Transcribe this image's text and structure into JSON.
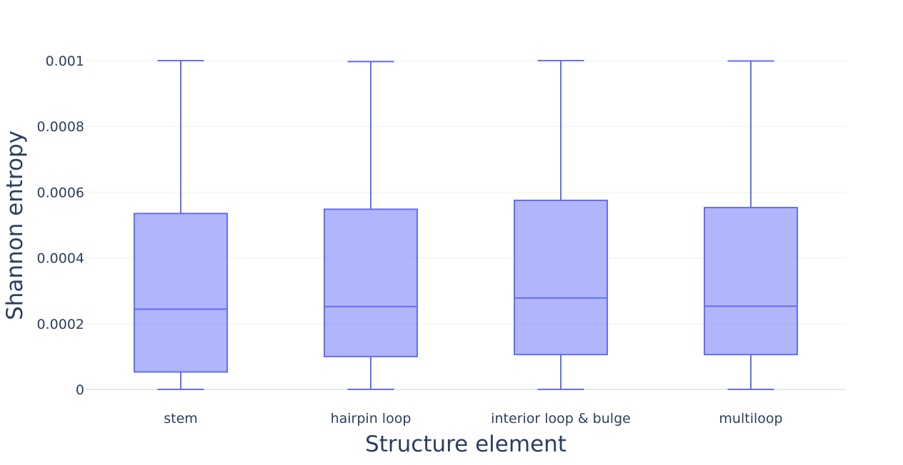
{
  "chart_data": {
    "type": "box",
    "xlabel": "Structure element",
    "ylabel": "Shannon entropy",
    "ylim": [
      0,
      0.001
    ],
    "yticks": [
      0,
      0.0002,
      0.0004,
      0.0006,
      0.0008,
      0.001
    ],
    "ytick_labels": [
      "0",
      "0.0002",
      "0.0004",
      "0.0006",
      "0.0008",
      "0.001"
    ],
    "grid": true,
    "color": "#636efa",
    "fill_color": "rgba(99,110,250,0.5)",
    "categories": [
      "stem",
      "hairpin loop",
      "interior loop & bulge",
      "multiloop"
    ],
    "boxes": [
      {
        "category": "stem",
        "min": 0,
        "q1": 5.3e-05,
        "median": 0.000244,
        "q3": 0.000535,
        "max": 0.001
      },
      {
        "category": "hairpin loop",
        "min": 0,
        "q1": 0.0001,
        "median": 0.000252,
        "q3": 0.000548,
        "max": 0.000997
      },
      {
        "category": "interior loop & bulge",
        "min": 0,
        "q1": 0.000106,
        "median": 0.000278,
        "q3": 0.000575,
        "max": 0.001
      },
      {
        "category": "multiloop",
        "min": 0,
        "q1": 0.000106,
        "median": 0.000253,
        "q3": 0.000553,
        "max": 0.000999
      }
    ]
  }
}
